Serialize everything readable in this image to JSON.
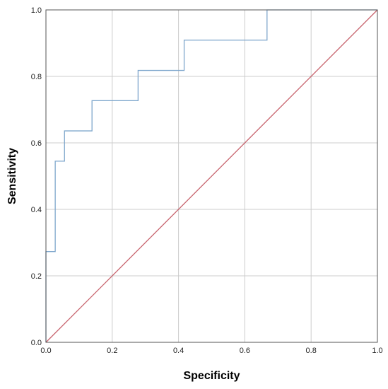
{
  "chart_data": {
    "type": "line",
    "title": "",
    "xlabel": "Specificity",
    "ylabel": "Sensitivity",
    "xlim": [
      0.0,
      1.0
    ],
    "ylim": [
      0.0,
      1.0
    ],
    "x_ticks": [
      "0.0",
      "0.2",
      "0.4",
      "0.6",
      "0.8",
      "1.0"
    ],
    "y_ticks": [
      "0.0",
      "0.2",
      "0.4",
      "0.6",
      "0.8",
      "1.0"
    ],
    "grid": true,
    "legend": "none",
    "series": [
      {
        "color": "#7ea6cc",
        "step": true,
        "points": [
          [
            0.0,
            0.0
          ],
          [
            0.0,
            0.273
          ],
          [
            0.028,
            0.273
          ],
          [
            0.028,
            0.545
          ],
          [
            0.056,
            0.545
          ],
          [
            0.056,
            0.636
          ],
          [
            0.139,
            0.636
          ],
          [
            0.139,
            0.727
          ],
          [
            0.278,
            0.727
          ],
          [
            0.278,
            0.818
          ],
          [
            0.417,
            0.818
          ],
          [
            0.417,
            0.909
          ],
          [
            0.667,
            0.909
          ],
          [
            0.667,
            1.0
          ],
          [
            1.0,
            1.0
          ]
        ]
      },
      {
        "color": "#c8646e",
        "step": false,
        "points": [
          [
            0.0,
            0.0
          ],
          [
            1.0,
            1.0
          ]
        ]
      }
    ]
  }
}
